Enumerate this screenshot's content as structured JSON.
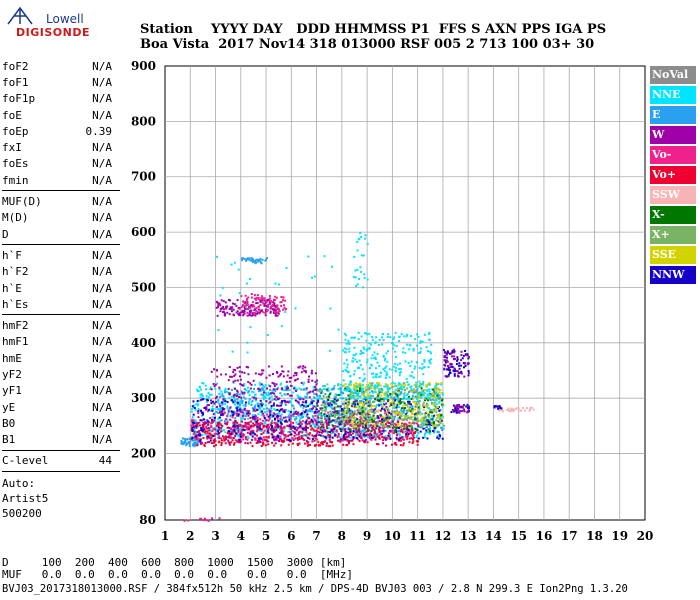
{
  "logo": {
    "line1": "Lowell",
    "line2": "DIGISONDE"
  },
  "header": {
    "line1": "Station    YYYY DAY   DDD HHMMSS P1  FFS S AXN PPS IGA PS",
    "line2": "Boa Vista  2017 Nov14 318 013000 RSF 005 2 713 100 03+ 30"
  },
  "params": {
    "group1": [
      {
        "name": "foF2",
        "value": "N/A"
      },
      {
        "name": "foF1",
        "value": "N/A"
      },
      {
        "name": "foF1p",
        "value": "N/A"
      },
      {
        "name": "foE",
        "value": "N/A"
      },
      {
        "name": "foEp",
        "value": "0.39"
      },
      {
        "name": "fxI",
        "value": "N/A"
      },
      {
        "name": "foEs",
        "value": "N/A"
      },
      {
        "name": "fmin",
        "value": "N/A"
      }
    ],
    "group2": [
      {
        "name": "MUF(D)",
        "value": "N/A"
      },
      {
        "name": "M(D)",
        "value": "N/A"
      },
      {
        "name": "D",
        "value": "N/A"
      }
    ],
    "group3": [
      {
        "name": "h`F",
        "value": "N/A"
      },
      {
        "name": "h`F2",
        "value": "N/A"
      },
      {
        "name": "h`E",
        "value": "N/A"
      },
      {
        "name": "h`Es",
        "value": "N/A"
      }
    ],
    "group4": [
      {
        "name": "hmF2",
        "value": "N/A"
      },
      {
        "name": "hmF1",
        "value": "N/A"
      },
      {
        "name": "hmE",
        "value": "N/A"
      },
      {
        "name": "yF2",
        "value": "N/A"
      },
      {
        "name": "yF1",
        "value": "N/A"
      },
      {
        "name": "yE",
        "value": "N/A"
      },
      {
        "name": "B0",
        "value": "N/A"
      },
      {
        "name": "B1",
        "value": "N/A"
      }
    ],
    "clevel": {
      "name": "C-level",
      "value": "44"
    },
    "auto": [
      "Auto:",
      "Artist5",
      "500200"
    ]
  },
  "legend": [
    {
      "label": "NoVal",
      "color": "#8c8c8c"
    },
    {
      "label": "NNE",
      "color": "#00e5ff"
    },
    {
      "label": "E",
      "color": "#2aa0f0"
    },
    {
      "label": "W",
      "color": "#a000a8"
    },
    {
      "label": "Vo-",
      "color": "#f0208c"
    },
    {
      "label": "Vo+",
      "color": "#f00030"
    },
    {
      "label": "SSW",
      "color": "#f8b4b4"
    },
    {
      "label": "X-",
      "color": "#007800"
    },
    {
      "label": "X+",
      "color": "#78b464"
    },
    {
      "label": "SSE",
      "color": "#d2d200"
    },
    {
      "label": "NNW",
      "color": "#1400c8"
    }
  ],
  "footer": {
    "line1": "D     100  200  400  600  800  1000  1500  3000 [km]",
    "line2": "MUF   0.0  0.0  0.0  0.0  0.0  0.0   0.0   0.0  [MHz]",
    "line3": "BVJ03_2017318013000.RSF / 384fx512h 50 kHz 2.5 km / DPS-4D BVJ03 003 / 2.8 N 299.3 E Ion2Png 1.3.20"
  },
  "chart_data": {
    "type": "scatter",
    "title": "",
    "xlabel": "",
    "ylabel": "",
    "xlim": [
      1,
      20
    ],
    "ylim": [
      80,
      900
    ],
    "xticks": [
      1,
      2,
      3,
      4,
      5,
      6,
      7,
      8,
      9,
      10,
      11,
      12,
      13,
      14,
      15,
      16,
      17,
      18,
      19,
      20
    ],
    "yticks": [
      80,
      200,
      300,
      400,
      500,
      600,
      700,
      800,
      900
    ],
    "grid": true,
    "legend_position": "right",
    "clusters": [
      {
        "series": "E",
        "x": [
          1.6,
          2.4
        ],
        "y": [
          215,
          230
        ],
        "n": 60
      },
      {
        "series": "NNE",
        "x": [
          2,
          12
        ],
        "y": [
          230,
          330
        ],
        "n": 900
      },
      {
        "series": "E",
        "x": [
          3,
          12
        ],
        "y": [
          240,
          320
        ],
        "n": 500
      },
      {
        "series": "Vo+",
        "x": [
          2,
          11
        ],
        "y": [
          215,
          260
        ],
        "n": 500
      },
      {
        "series": "Vo-",
        "x": [
          2,
          11
        ],
        "y": [
          225,
          280
        ],
        "n": 300
      },
      {
        "series": "W",
        "x": [
          2.2,
          10
        ],
        "y": [
          220,
          300
        ],
        "n": 300
      },
      {
        "series": "NNW",
        "x": [
          2,
          12
        ],
        "y": [
          225,
          300
        ],
        "n": 300
      },
      {
        "series": "SSE",
        "x": [
          8,
          12
        ],
        "y": [
          250,
          330
        ],
        "n": 300
      },
      {
        "series": "X-",
        "x": [
          7,
          12
        ],
        "y": [
          240,
          320
        ],
        "n": 150
      },
      {
        "series": "X+",
        "x": [
          7,
          12
        ],
        "y": [
          250,
          330
        ],
        "n": 150
      },
      {
        "series": "W",
        "x": [
          3,
          5.5
        ],
        "y": [
          450,
          480
        ],
        "n": 150
      },
      {
        "series": "Vo-",
        "x": [
          3.8,
          5.8
        ],
        "y": [
          455,
          490
        ],
        "n": 80
      },
      {
        "series": "E",
        "x": [
          4,
          5
        ],
        "y": [
          545,
          555
        ],
        "n": 40
      },
      {
        "series": "W",
        "x": [
          2.8,
          7
        ],
        "y": [
          300,
          360
        ],
        "n": 150
      },
      {
        "series": "NNE",
        "x": [
          8,
          11.5
        ],
        "y": [
          300,
          420
        ],
        "n": 300
      },
      {
        "series": "NNW",
        "x": [
          12,
          13
        ],
        "y": [
          340,
          390
        ],
        "n": 60
      },
      {
        "series": "W",
        "x": [
          12,
          13
        ],
        "y": [
          340,
          390
        ],
        "n": 40
      },
      {
        "series": "NNW",
        "x": [
          12.3,
          13
        ],
        "y": [
          275,
          290
        ],
        "n": 30
      },
      {
        "series": "W",
        "x": [
          12.3,
          13
        ],
        "y": [
          275,
          290
        ],
        "n": 20
      },
      {
        "series": "SSW",
        "x": [
          14,
          15.6
        ],
        "y": [
          278,
          285
        ],
        "n": 30
      },
      {
        "series": "NNW",
        "x": [
          14,
          14.3
        ],
        "y": [
          282,
          288
        ],
        "n": 12
      },
      {
        "series": "Vo-",
        "x": [
          1.7,
          3.2
        ],
        "y": [
          80,
          85
        ],
        "n": 10
      },
      {
        "series": "NNE",
        "x": [
          3,
          8
        ],
        "y": [
          380,
          560
        ],
        "n": 30
      },
      {
        "series": "NNE",
        "x": [
          8.4,
          9
        ],
        "y": [
          500,
          600
        ],
        "n": 25
      }
    ]
  }
}
